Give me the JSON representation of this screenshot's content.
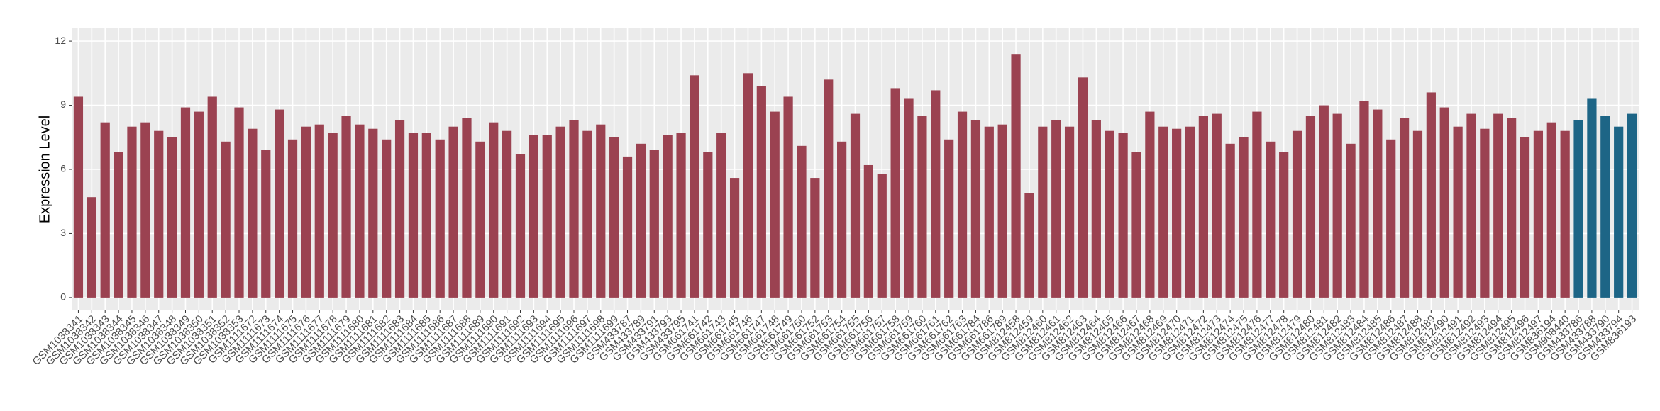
{
  "chart_data": {
    "type": "bar",
    "y_label": "Expression Level",
    "categories": [
      "GSM1038341",
      "GSM1038342",
      "GSM1038343",
      "GSM1038344",
      "GSM1038345",
      "GSM1038346",
      "GSM1038347",
      "GSM1038348",
      "GSM1038349",
      "GSM1038350",
      "GSM1038351",
      "GSM1038352",
      "GSM1038353",
      "GSM1111672",
      "GSM1111673",
      "GSM1111674",
      "GSM1111675",
      "GSM1111676",
      "GSM1111677",
      "GSM1111678",
      "GSM1111679",
      "GSM1111680",
      "GSM1111681",
      "GSM1111682",
      "GSM1111683",
      "GSM1111684",
      "GSM1111685",
      "GSM1111686",
      "GSM1111687",
      "GSM1111688",
      "GSM1111689",
      "GSM1111690",
      "GSM1111691",
      "GSM1111692",
      "GSM1111693",
      "GSM1111694",
      "GSM1111695",
      "GSM1111696",
      "GSM1111697",
      "GSM1111698",
      "GSM1111699",
      "GSM433787",
      "GSM433789",
      "GSM433791",
      "GSM433793",
      "GSM433795",
      "GSM661741",
      "GSM661742",
      "GSM661743",
      "GSM661745",
      "GSM661746",
      "GSM661747",
      "GSM661748",
      "GSM661749",
      "GSM661750",
      "GSM661752",
      "GSM661753",
      "GSM661754",
      "GSM661755",
      "GSM661756",
      "GSM661757",
      "GSM661758",
      "GSM661759",
      "GSM661760",
      "GSM661761",
      "GSM661762",
      "GSM661763",
      "GSM661784",
      "GSM661786",
      "GSM661789",
      "GSM812458",
      "GSM812459",
      "GSM812460",
      "GSM812461",
      "GSM812462",
      "GSM812463",
      "GSM812464",
      "GSM812465",
      "GSM812466",
      "GSM812467",
      "GSM812468",
      "GSM812469",
      "GSM812470",
      "GSM812471",
      "GSM812472",
      "GSM812473",
      "GSM812474",
      "GSM812475",
      "GSM812476",
      "GSM812477",
      "GSM812478",
      "GSM812479",
      "GSM812480",
      "GSM812481",
      "GSM812482",
      "GSM812483",
      "GSM812484",
      "GSM812485",
      "GSM812486",
      "GSM812487",
      "GSM812488",
      "GSM812489",
      "GSM812490",
      "GSM812491",
      "GSM812492",
      "GSM812493",
      "GSM812494",
      "GSM812495",
      "GSM812496",
      "GSM812497",
      "GSM836194",
      "GSM908440",
      "GSM433786",
      "GSM433788",
      "GSM433790",
      "GSM433794",
      "GSM836193"
    ],
    "values": [
      9.4,
      4.7,
      8.2,
      6.8,
      8.0,
      8.2,
      7.8,
      7.5,
      8.9,
      8.7,
      9.4,
      7.3,
      8.9,
      7.9,
      6.9,
      8.8,
      7.4,
      8.0,
      8.1,
      7.7,
      8.5,
      8.1,
      7.9,
      7.4,
      8.3,
      7.7,
      7.7,
      7.4,
      8.0,
      8.4,
      7.3,
      8.2,
      7.8,
      6.7,
      7.6,
      7.6,
      8.0,
      8.3,
      7.8,
      8.1,
      7.5,
      6.6,
      7.2,
      6.9,
      7.6,
      7.7,
      10.4,
      6.8,
      7.7,
      5.6,
      10.5,
      9.9,
      8.7,
      9.4,
      7.1,
      5.6,
      10.2,
      7.3,
      8.6,
      6.2,
      5.8,
      9.8,
      9.3,
      8.5,
      9.7,
      7.4,
      8.7,
      8.3,
      8.0,
      8.1,
      11.4,
      4.9,
      8.0,
      8.3,
      8.0,
      10.3,
      8.3,
      7.8,
      7.7,
      6.8,
      8.7,
      8.0,
      7.9,
      8.0,
      8.5,
      8.6,
      7.2,
      7.5,
      8.7,
      7.3,
      6.8,
      7.8,
      8.5,
      9.0,
      8.6,
      7.2,
      9.2,
      8.8,
      7.4,
      8.4,
      7.8,
      9.6,
      8.9,
      8.0,
      8.6,
      7.9,
      8.6,
      8.4,
      7.5,
      7.8,
      8.2,
      7.8,
      8.3,
      9.3,
      8.5,
      8.0,
      8.6
    ],
    "bar_colors": [
      "#9b4251",
      "#9b4251",
      "#9b4251",
      "#9b4251",
      "#9b4251",
      "#9b4251",
      "#9b4251",
      "#9b4251",
      "#9b4251",
      "#9b4251",
      "#9b4251",
      "#9b4251",
      "#9b4251",
      "#9b4251",
      "#9b4251",
      "#9b4251",
      "#9b4251",
      "#9b4251",
      "#9b4251",
      "#9b4251",
      "#9b4251",
      "#9b4251",
      "#9b4251",
      "#9b4251",
      "#9b4251",
      "#9b4251",
      "#9b4251",
      "#9b4251",
      "#9b4251",
      "#9b4251",
      "#9b4251",
      "#9b4251",
      "#9b4251",
      "#9b4251",
      "#9b4251",
      "#9b4251",
      "#9b4251",
      "#9b4251",
      "#9b4251",
      "#9b4251",
      "#9b4251",
      "#9b4251",
      "#9b4251",
      "#9b4251",
      "#9b4251",
      "#9b4251",
      "#9b4251",
      "#9b4251",
      "#9b4251",
      "#9b4251",
      "#9b4251",
      "#9b4251",
      "#9b4251",
      "#9b4251",
      "#9b4251",
      "#9b4251",
      "#9b4251",
      "#9b4251",
      "#9b4251",
      "#9b4251",
      "#9b4251",
      "#9b4251",
      "#9b4251",
      "#9b4251",
      "#9b4251",
      "#9b4251",
      "#9b4251",
      "#9b4251",
      "#9b4251",
      "#9b4251",
      "#9b4251",
      "#9b4251",
      "#9b4251",
      "#9b4251",
      "#9b4251",
      "#9b4251",
      "#9b4251",
      "#9b4251",
      "#9b4251",
      "#9b4251",
      "#9b4251",
      "#9b4251",
      "#9b4251",
      "#9b4251",
      "#9b4251",
      "#9b4251",
      "#9b4251",
      "#9b4251",
      "#9b4251",
      "#9b4251",
      "#9b4251",
      "#9b4251",
      "#9b4251",
      "#9b4251",
      "#9b4251",
      "#9b4251",
      "#9b4251",
      "#9b4251",
      "#9b4251",
      "#9b4251",
      "#9b4251",
      "#9b4251",
      "#9b4251",
      "#9b4251",
      "#9b4251",
      "#9b4251",
      "#9b4251",
      "#9b4251",
      "#9b4251",
      "#9b4251",
      "#9b4251",
      "#9b4251",
      "#1d6586",
      "#1d6586",
      "#1d6586",
      "#1d6586",
      "#1d6586"
    ],
    "ylim": [
      -0.6,
      12.6
    ],
    "yticks": [
      0,
      3,
      6,
      9,
      12
    ],
    "grid": true
  }
}
